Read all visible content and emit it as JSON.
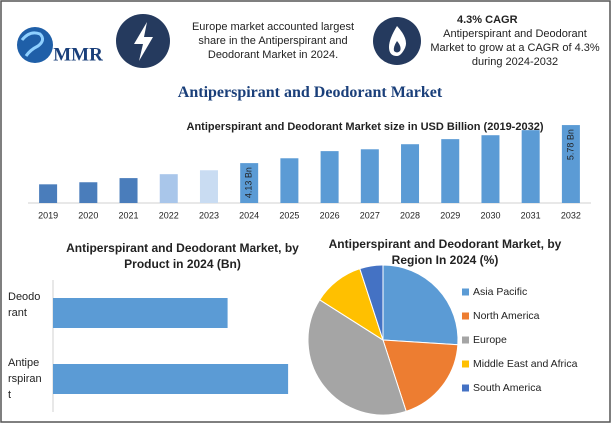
{
  "header": {
    "logo": "MMR",
    "title": "Antiperspirant and Deodorant Market",
    "notes": [
      {
        "text": "Europe market accounted largest share in the Antiperspirant and Deodorant Market in 2024."
      },
      {
        "heading": "4.3% CAGR",
        "text": "Antiperspirant and Deodorant Market to grow at a CAGR of 4.3% during 2024-2032"
      }
    ]
  },
  "chart_data": [
    {
      "type": "bar",
      "title": "Antiperspirant and Deodorant Market size in USD Billion (2019-2032)",
      "categories": [
        "2019",
        "2020",
        "2021",
        "2022",
        "2023",
        "2024",
        "2025",
        "2026",
        "2027",
        "2028",
        "2029",
        "2030",
        "2031",
        "2032"
      ],
      "values": [
        3.21,
        3.3,
        3.48,
        3.65,
        3.82,
        4.13,
        4.34,
        4.65,
        4.73,
        4.95,
        5.17,
        5.34,
        5.56,
        5.78
      ],
      "value_labels": [
        null,
        null,
        null,
        null,
        null,
        "4.13 Bn",
        null,
        null,
        null,
        null,
        null,
        null,
        null,
        "5.78 Bn"
      ],
      "colors": [
        "#4a7dbb",
        "#4a7dbb",
        "#4a7dbb",
        "#a9c6ea",
        "#c9dcf2",
        "#5b9bd5",
        "#5b9bd5",
        "#5b9bd5",
        "#5b9bd5",
        "#5b9bd5",
        "#5b9bd5",
        "#5b9bd5",
        "#5b9bd5",
        "#5b9bd5"
      ],
      "ylim": [
        2.4,
        6
      ]
    },
    {
      "type": "bar",
      "horizontal": true,
      "title": "Antiperspirant and Deodorant Market, by Product in 2024 (Bn)",
      "categories": [
        "Deodorant",
        "Antiperspirant"
      ],
      "values": [
        1.76,
        2.37
      ],
      "color": "#5b9bd5",
      "xlim": [
        0,
        2.5
      ]
    },
    {
      "type": "pie",
      "title": "Antiperspirant and Deodorant Market, by Region In 2024 (%)",
      "categories": [
        "Asia Pacific",
        "North America",
        "Europe",
        "Middle East and Africa",
        "South America"
      ],
      "values": [
        26,
        19,
        39,
        11,
        5
      ],
      "colors": [
        "#5b9bd5",
        "#ed7d31",
        "#a5a5a5",
        "#ffc000",
        "#4472c4"
      ],
      "legend": "right"
    }
  ]
}
